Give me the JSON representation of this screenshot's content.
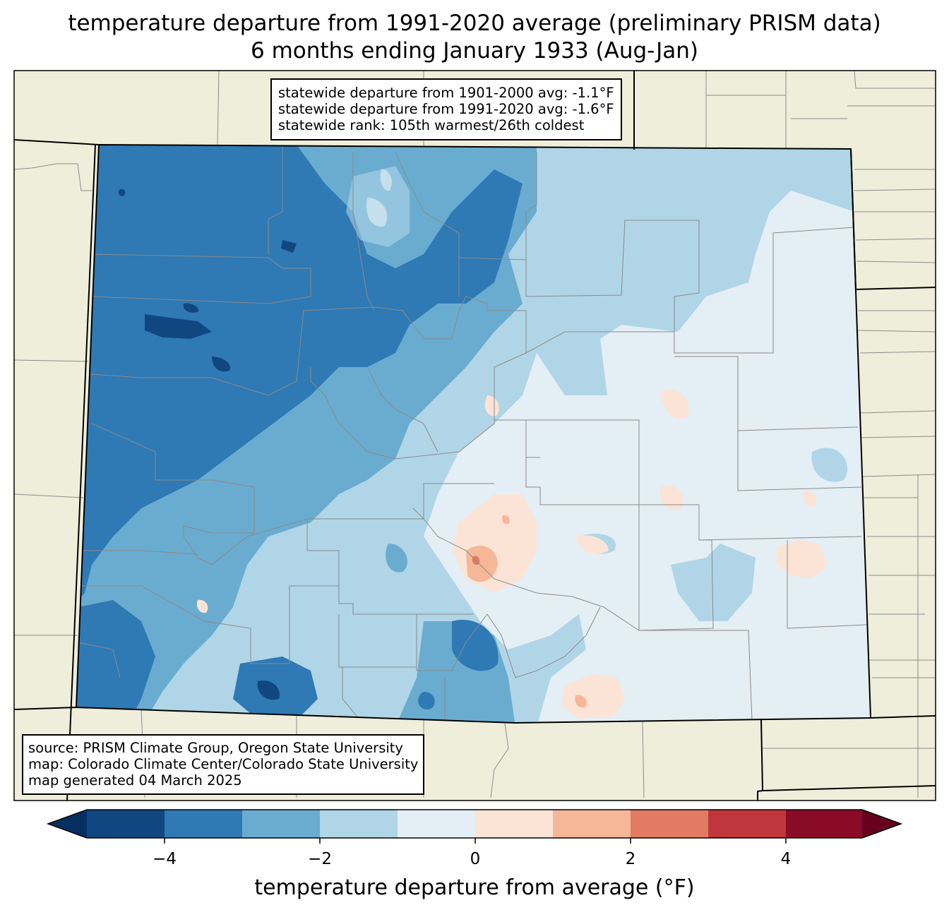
{
  "title": {
    "line1": "temperature departure from 1991-2020 average (preliminary PRISM data)",
    "line2": "6 months ending January 1933 (Aug-Jan)"
  },
  "stats_box": {
    "line1": "statewide departure from 1901-2000 avg: -1.1°F",
    "line2": "statewide departure from 1991-2020 avg: -1.6°F",
    "line3": "statewide rank: 105th warmest/26th coldest"
  },
  "source_box": {
    "line1": "source: PRISM Climate Group, Oregon State University",
    "line2": "map: Colorado Climate Center/Colorado State University",
    "line3": "map generated 04 March 2025"
  },
  "colorbar": {
    "label": "temperature departure from average (°F)",
    "ticks": [
      "−4",
      "−2",
      "0",
      "2",
      "4"
    ],
    "bins": [
      {
        "range": [
          -5,
          -4
        ],
        "color": "#114781"
      },
      {
        "range": [
          -4,
          -3
        ],
        "color": "#2f79b5"
      },
      {
        "range": [
          -3,
          -2
        ],
        "color": "#6aacd0"
      },
      {
        "range": [
          -2,
          -1
        ],
        "color": "#b0d5e7"
      },
      {
        "range": [
          -1,
          0
        ],
        "color": "#e4eef5"
      },
      {
        "range": [
          0,
          1
        ],
        "color": "#fbe4d6"
      },
      {
        "range": [
          1,
          2
        ],
        "color": "#f6b799"
      },
      {
        "range": [
          2,
          3
        ],
        "color": "#e17b62"
      },
      {
        "range": [
          3,
          4
        ],
        "color": "#c0363c"
      },
      {
        "range": [
          4,
          5
        ],
        "color": "#8a0b25"
      }
    ],
    "under_color": "#053061",
    "over_color": "#67001f"
  },
  "colors": {
    "land": "#efeedb",
    "border": "#000000",
    "county_line": "#808080"
  }
}
